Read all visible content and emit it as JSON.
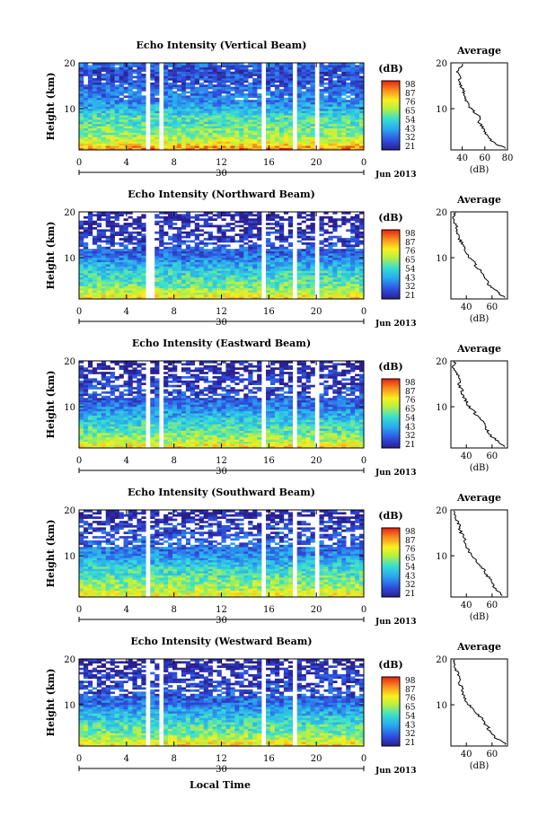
{
  "figure": {
    "xlabel": "Local Time",
    "date_label": "Jun 2013",
    "day_label": "30",
    "colorbar_unit": "(dB)",
    "average_title": "Average",
    "average_xlabel": "(dB)"
  },
  "chart_data": [
    {
      "type": "heatmap",
      "title": "Echo Intensity (Vertical Beam)",
      "ylabel": "Height (km)",
      "x_ticks": [
        "0",
        "4",
        "8",
        "12",
        "16",
        "20",
        "0"
      ],
      "xlim": [
        0,
        24
      ],
      "y_ticks": [
        "10",
        "20"
      ],
      "ylim": [
        1,
        20
      ],
      "colorbar_ticks": [
        "98",
        "87",
        "76",
        "65",
        "54",
        "43",
        "32",
        "21"
      ],
      "clim": [
        21,
        98
      ],
      "data_gaps_hours": [
        [
          5.5,
          6.0
        ],
        [
          6.6,
          7.1
        ],
        [
          15.4,
          15.8
        ],
        [
          17.9,
          18.3
        ],
        [
          19.8,
          20.2
        ]
      ],
      "average_profile": {
        "xlabel": "(dB)",
        "x_ticks": [
          "40",
          "60",
          "80"
        ],
        "xlim": [
          30,
          80
        ],
        "y_ticks": [
          "10",
          "20"
        ],
        "ylim": [
          1,
          20
        ],
        "height_km": [
          1.5,
          2,
          3,
          4,
          5,
          6,
          7,
          8,
          9,
          10,
          11,
          12,
          13,
          14,
          15,
          16,
          17,
          18,
          19,
          19.5
        ],
        "value_db": [
          78,
          72,
          66,
          62,
          60,
          58,
          55,
          56,
          52,
          48,
          45,
          43,
          42,
          41,
          39,
          37,
          38,
          36,
          38,
          40
        ]
      }
    },
    {
      "type": "heatmap",
      "title": "Echo Intensity (Northward Beam)",
      "ylabel": "Height (km)",
      "x_ticks": [
        "0",
        "4",
        "8",
        "12",
        "16",
        "20",
        "0"
      ],
      "xlim": [
        0,
        24
      ],
      "y_ticks": [
        "10",
        "20"
      ],
      "ylim": [
        1,
        20
      ],
      "colorbar_ticks": [
        "98",
        "87",
        "76",
        "65",
        "54",
        "43",
        "32",
        "21"
      ],
      "clim": [
        21,
        98
      ],
      "data_gaps_hours": [
        [
          5.6,
          6.2
        ],
        [
          15.4,
          15.8
        ],
        [
          17.9,
          18.2
        ],
        [
          20.0,
          20.2
        ]
      ],
      "average_profile": {
        "xlabel": "(dB)",
        "x_ticks": [
          "40",
          "60"
        ],
        "xlim": [
          28,
          72
        ],
        "y_ticks": [
          "10",
          "20"
        ],
        "ylim": [
          1,
          20
        ],
        "height_km": [
          1.5,
          2,
          3,
          4,
          5,
          6,
          7,
          8,
          9,
          10,
          11,
          12,
          13,
          14,
          15,
          16,
          17,
          18,
          19,
          19.5
        ],
        "value_db": [
          70,
          66,
          62,
          58,
          56,
          54,
          52,
          48,
          46,
          42,
          40,
          38,
          37,
          35,
          34,
          33,
          32,
          31,
          30,
          31
        ]
      }
    },
    {
      "type": "heatmap",
      "title": "Echo Intensity (Eastward Beam)",
      "ylabel": "Height (km)",
      "x_ticks": [
        "0",
        "4",
        "8",
        "12",
        "16",
        "20",
        "0"
      ],
      "xlim": [
        0,
        24
      ],
      "y_ticks": [
        "10",
        "20"
      ],
      "ylim": [
        1,
        20
      ],
      "colorbar_ticks": [
        "98",
        "87",
        "76",
        "65",
        "54",
        "43",
        "32",
        "21"
      ],
      "clim": [
        21,
        98
      ],
      "data_gaps_hours": [
        [
          5.6,
          6.1
        ],
        [
          6.6,
          7.1
        ],
        [
          15.4,
          15.8
        ],
        [
          17.9,
          18.3
        ],
        [
          19.8,
          20.2
        ]
      ],
      "average_profile": {
        "xlabel": "(dB)",
        "x_ticks": [
          "40",
          "60"
        ],
        "xlim": [
          28,
          72
        ],
        "y_ticks": [
          "10",
          "20"
        ],
        "ylim": [
          1,
          20
        ],
        "height_km": [
          1.5,
          2,
          3,
          4,
          5,
          6,
          7,
          8,
          9,
          10,
          11,
          12,
          13,
          14,
          15,
          16,
          17,
          18,
          19,
          19.5
        ],
        "value_db": [
          70,
          66,
          62,
          58,
          56,
          54,
          52,
          48,
          46,
          42,
          40,
          38,
          37,
          36,
          34,
          35,
          33,
          31,
          30,
          31
        ]
      }
    },
    {
      "type": "heatmap",
      "title": "Echo Intensity (Southward Beam)",
      "ylabel": "Height (km)",
      "x_ticks": [
        "0",
        "4",
        "8",
        "12",
        "16",
        "20",
        "0"
      ],
      "xlim": [
        0,
        24
      ],
      "y_ticks": [
        "10",
        "20"
      ],
      "ylim": [
        1,
        20
      ],
      "colorbar_ticks": [
        "98",
        "87",
        "76",
        "65",
        "54",
        "43",
        "32",
        "21"
      ],
      "clim": [
        21,
        98
      ],
      "data_gaps_hours": [
        [
          5.6,
          6.1
        ],
        [
          15.4,
          15.8
        ],
        [
          17.9,
          18.2
        ],
        [
          19.8,
          20.2
        ]
      ],
      "average_profile": {
        "xlabel": "(dB)",
        "x_ticks": [
          "40",
          "60"
        ],
        "xlim": [
          28,
          72
        ],
        "y_ticks": [
          "10",
          "20"
        ],
        "ylim": [
          1,
          20
        ],
        "height_km": [
          1.5,
          2,
          3,
          4,
          5,
          6,
          7,
          8,
          9,
          10,
          11,
          12,
          13,
          14,
          15,
          16,
          17,
          18,
          19,
          19.5
        ],
        "value_db": [
          68,
          66,
          62,
          60,
          58,
          55,
          54,
          50,
          48,
          44,
          42,
          40,
          39,
          38,
          36,
          35,
          34,
          32,
          30,
          31
        ]
      }
    },
    {
      "type": "heatmap",
      "title": "Echo Intensity (Westward Beam)",
      "ylabel": "Height (km)",
      "x_ticks": [
        "0",
        "4",
        "8",
        "12",
        "16",
        "20",
        "0"
      ],
      "xlim": [
        0,
        24
      ],
      "y_ticks": [
        "10",
        "20"
      ],
      "ylim": [
        1,
        20
      ],
      "colorbar_ticks": [
        "98",
        "87",
        "76",
        "65",
        "54",
        "43",
        "32",
        "21"
      ],
      "clim": [
        21,
        98
      ],
      "data_gaps_hours": [
        [
          5.5,
          6.0
        ],
        [
          6.6,
          7.1
        ],
        [
          15.4,
          15.8
        ],
        [
          17.9,
          18.3
        ]
      ],
      "average_profile": {
        "xlabel": "(dB)",
        "x_ticks": [
          "40",
          "60"
        ],
        "xlim": [
          28,
          72
        ],
        "y_ticks": [
          "10",
          "20"
        ],
        "ylim": [
          1,
          20
        ],
        "height_km": [
          1.5,
          2,
          3,
          4,
          5,
          6,
          7,
          8,
          9,
          10,
          11,
          12,
          13,
          14,
          15,
          16,
          17,
          18,
          19,
          19.5
        ],
        "value_db": [
          70,
          67,
          62,
          58,
          57,
          54,
          52,
          48,
          46,
          42,
          40,
          38,
          37,
          36,
          34,
          35,
          33,
          31,
          30,
          31
        ]
      }
    }
  ]
}
